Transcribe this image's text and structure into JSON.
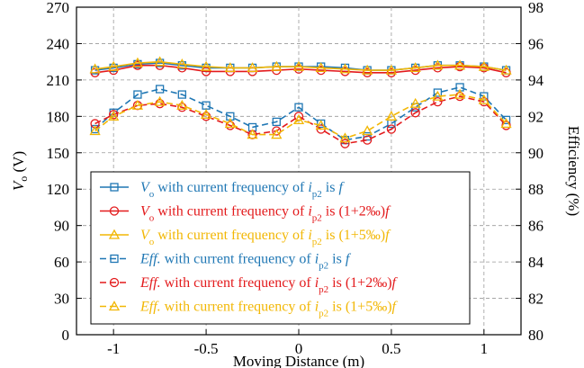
{
  "chart_data": {
    "type": "line",
    "title": "",
    "xlabel": "Moving Distance (m)",
    "ylabel": "V_o (V)",
    "y2label": "Efficiency (%)",
    "xlim": [
      -1.2,
      1.2
    ],
    "ylim": [
      0,
      270
    ],
    "y2lim": [
      80,
      98
    ],
    "grid": true,
    "legend_position": "bottom-left",
    "x_ticks": [
      -1,
      -0.5,
      0,
      0.5,
      1
    ],
    "x_tick_labels": [
      "-1",
      "-0.5",
      "0",
      "0.5",
      "1"
    ],
    "y_ticks": [
      0,
      30,
      60,
      90,
      120,
      150,
      180,
      210,
      240,
      270
    ],
    "y_tick_labels": [
      "0",
      "30",
      "60",
      "90",
      "120",
      "150",
      "180",
      "210",
      "240",
      "270"
    ],
    "y2_ticks": [
      80,
      82,
      84,
      86,
      88,
      90,
      92,
      94,
      96,
      98
    ],
    "y2_tick_labels": [
      "80",
      "82",
      "84",
      "86",
      "88",
      "90",
      "92",
      "94",
      "96",
      "98"
    ],
    "x": [
      -1.1,
      -1.0,
      -0.87,
      -0.75,
      -0.63,
      -0.5,
      -0.37,
      -0.25,
      -0.12,
      0.0,
      0.12,
      0.25,
      0.37,
      0.5,
      0.63,
      0.75,
      0.87,
      1.0,
      1.12
    ],
    "series": [
      {
        "name_parts": [
          {
            "t": "V",
            "style": "italic"
          },
          {
            "t": "o",
            "style": "sub"
          },
          {
            "t": " with current frequency of ",
            "style": "normal"
          },
          {
            "t": "i",
            "style": "italic"
          },
          {
            "t": "p2",
            "style": "sub"
          },
          {
            "t": " is ",
            "style": "normal"
          },
          {
            "t": "f",
            "style": "italic"
          }
        ],
        "axis": "left",
        "color": "#1f77b4",
        "marker": "square",
        "dash": "solid",
        "values": [
          218,
          220,
          223,
          224,
          222,
          220,
          220,
          220,
          221,
          221,
          221,
          220,
          218,
          218,
          220,
          222,
          222,
          221,
          218
        ]
      },
      {
        "name_parts": [
          {
            "t": "V",
            "style": "italic"
          },
          {
            "t": "o",
            "style": "sub"
          },
          {
            "t": " with current frequency of ",
            "style": "normal"
          },
          {
            "t": "i",
            "style": "italic"
          },
          {
            "t": "p2",
            "style": "sub"
          },
          {
            "t": " is (1+2‰)",
            "style": "normal"
          },
          {
            "t": "f",
            "style": "italic"
          }
        ],
        "axis": "left",
        "color": "#e31a1c",
        "marker": "circle",
        "dash": "solid",
        "values": [
          216,
          218,
          222,
          222,
          220,
          217,
          217,
          217,
          218,
          219,
          218,
          217,
          216,
          216,
          218,
          220,
          221,
          220,
          216
        ]
      },
      {
        "name_parts": [
          {
            "t": "V",
            "style": "italic"
          },
          {
            "t": "o",
            "style": "sub"
          },
          {
            "t": " with current frequency of ",
            "style": "normal"
          },
          {
            "t": "i",
            "style": "italic"
          },
          {
            "t": "p2",
            "style": "sub"
          },
          {
            "t": " is (1+5‰)",
            "style": "normal"
          },
          {
            "t": "f",
            "style": "italic"
          }
        ],
        "axis": "left",
        "color": "#f2b705",
        "marker": "triangle",
        "dash": "solid",
        "values": [
          219,
          221,
          224,
          225,
          223,
          221,
          220,
          220,
          221,
          221,
          220,
          219,
          218,
          218,
          220,
          222,
          222,
          221,
          218
        ]
      },
      {
        "name_parts": [
          {
            "t": "Eff.",
            "style": "italic"
          },
          {
            "t": " with current frequency of ",
            "style": "normal"
          },
          {
            "t": "i",
            "style": "italic"
          },
          {
            "t": "p2",
            "style": "sub"
          },
          {
            "t": " is ",
            "style": "normal"
          },
          {
            "t": "f",
            "style": "italic"
          }
        ],
        "axis": "right",
        "color": "#1f77b4",
        "marker": "square",
        "dash": "dashed",
        "values": [
          91.3,
          92.2,
          93.2,
          93.5,
          93.2,
          92.6,
          92.0,
          91.4,
          91.7,
          92.5,
          91.6,
          90.7,
          90.9,
          91.6,
          92.5,
          93.3,
          93.6,
          93.1,
          91.8
        ]
      },
      {
        "name_parts": [
          {
            "t": "Eff.",
            "style": "italic"
          },
          {
            "t": " with current frequency of ",
            "style": "normal"
          },
          {
            "t": "i",
            "style": "italic"
          },
          {
            "t": "p2",
            "style": "sub"
          },
          {
            "t": " is (1+2‰)",
            "style": "normal"
          },
          {
            "t": "f",
            "style": "italic"
          }
        ],
        "axis": "right",
        "color": "#e31a1c",
        "marker": "circle",
        "dash": "dashed",
        "values": [
          91.6,
          92.1,
          92.6,
          92.7,
          92.5,
          92.0,
          91.5,
          91.0,
          91.2,
          92.0,
          91.3,
          90.5,
          90.7,
          91.3,
          92.2,
          92.8,
          93.1,
          92.8,
          91.5
        ]
      },
      {
        "name_parts": [
          {
            "t": "Eff.",
            "style": "italic"
          },
          {
            "t": " with current frequency of ",
            "style": "normal"
          },
          {
            "t": "i",
            "style": "italic"
          },
          {
            "t": "p2",
            "style": "sub"
          },
          {
            "t": " is (1+5‰)",
            "style": "normal"
          },
          {
            "t": "f",
            "style": "italic"
          }
        ],
        "axis": "right",
        "color": "#f2b705",
        "marker": "triangle",
        "dash": "dashed",
        "values": [
          91.2,
          92.0,
          92.6,
          92.8,
          92.6,
          92.1,
          91.6,
          91.0,
          91.0,
          91.8,
          91.5,
          90.8,
          91.2,
          92.0,
          92.7,
          93.1,
          93.2,
          92.9,
          91.6
        ]
      }
    ]
  }
}
